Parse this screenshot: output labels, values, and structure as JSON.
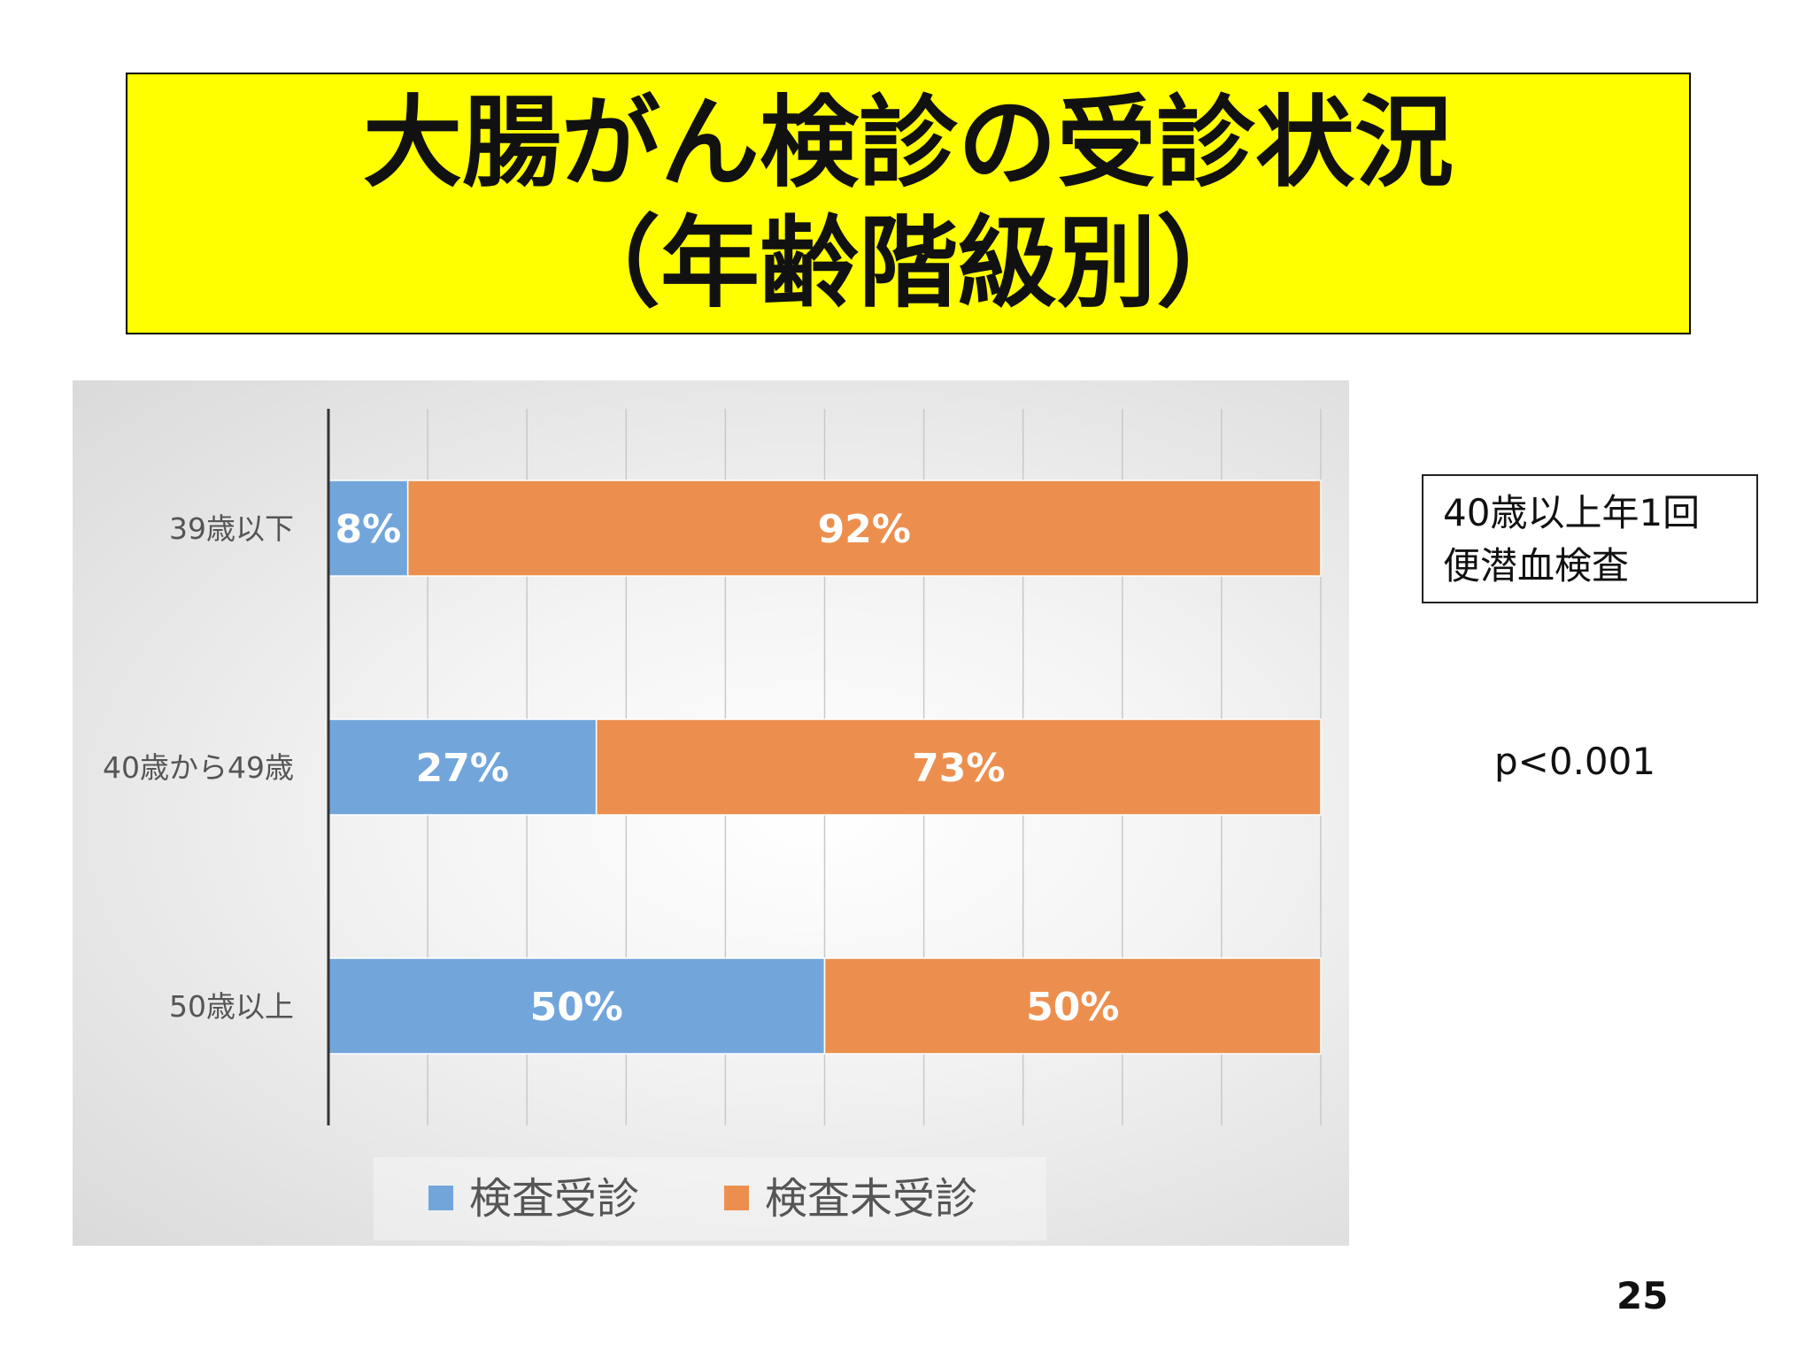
{
  "title": {
    "line1": "大腸がん検診の受診状況",
    "line2": "（年齢階級別）"
  },
  "note": {
    "line1": "40歳以上年1回",
    "line2": "便潜血検査"
  },
  "p_value": "p<0.001",
  "page_number": "25",
  "chart_data": {
    "type": "bar",
    "orientation": "horizontal",
    "stacked": "percent",
    "categories": [
      "39歳以下",
      "40歳から49歳",
      "50歳以上"
    ],
    "series": [
      {
        "name": "検査受診",
        "values": [
          8,
          27,
          50
        ],
        "labels": [
          "8%",
          "27%",
          "50%"
        ],
        "color": "#72a6db"
      },
      {
        "name": "検査未受診",
        "values": [
          92,
          73,
          50
        ],
        "labels": [
          "92%",
          "73%",
          "50%"
        ],
        "color": "#ec8f4e"
      }
    ],
    "xlim": [
      0,
      100
    ],
    "x_gridlines": 10,
    "grid": true,
    "legend_position": "bottom",
    "data_label_color": "#ffffff"
  }
}
